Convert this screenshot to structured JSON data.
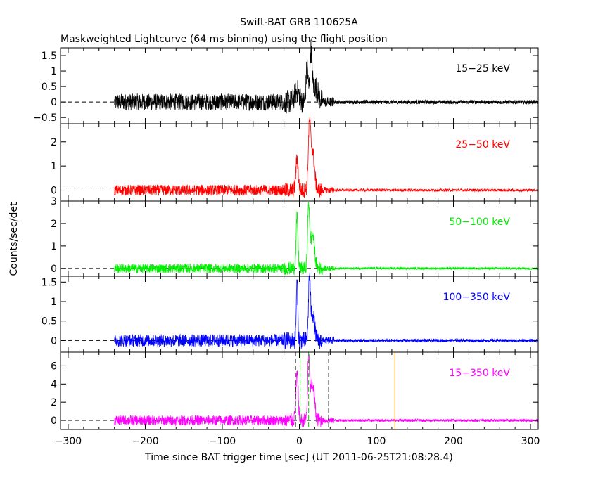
{
  "title": "Swift-BAT GRB 110625A",
  "subtitle": "Maskweighted Lightcurve (64 ms binning) using the flight position",
  "ylabel": "Counts/sec/det",
  "xlabel": "Time since BAT trigger time [sec] (UT 2011-06-25T21:08:28.4)",
  "chart_data": {
    "type": "line",
    "title": "Swift-BAT GRB 110625A",
    "subtitle": "Maskweighted Lightcurve (64 ms binning) using the flight position",
    "xlabel": "Time since BAT trigger time [sec] (UT 2011-06-25T21:08:28.4)",
    "ylabel": "Counts/sec/det",
    "xlim": [
      -310,
      310
    ],
    "xticks": [
      -300,
      -200,
      -100,
      0,
      100,
      200,
      300
    ],
    "data_range": [
      -240,
      310
    ],
    "grid": false,
    "panels": [
      {
        "label": "15−25 keV",
        "color": "#000000",
        "ylim": [
          -0.7,
          1.75
        ],
        "yticks": [
          -0.5,
          0,
          0.5,
          1,
          1.5
        ],
        "yticklabels": [
          "−0.5",
          "0",
          "0.5",
          "1",
          "1.5"
        ],
        "pre_noise": 0.17,
        "post_noise": 0.04,
        "peaks": [
          {
            "t": -3,
            "amp": 0.35,
            "width": 3.0
          },
          {
            "t": 10,
            "amp": 1.15,
            "width": 1.2
          },
          {
            "t": 15,
            "amp": 1.45,
            "width": 1.4
          },
          {
            "t": 20,
            "amp": 0.5,
            "width": 4.0
          }
        ]
      },
      {
        "label": "25−50 keV",
        "color": "#ff0000",
        "ylim": [
          -0.45,
          2.75
        ],
        "yticks": [
          0,
          1,
          2
        ],
        "yticklabels": [
          "0",
          "1",
          "2"
        ],
        "pre_noise": 0.14,
        "post_noise": 0.035,
        "peaks": [
          {
            "t": -3,
            "amp": 1.3,
            "width": 1.5
          },
          {
            "t": 13,
            "amp": 2.4,
            "width": 1.5
          },
          {
            "t": 17,
            "amp": 1.6,
            "width": 2.5
          }
        ]
      },
      {
        "label": "50−100 keV",
        "color": "#00ee00",
        "ylim": [
          -0.35,
          3.0
        ],
        "yticks": [
          0,
          1,
          2,
          3
        ],
        "yticklabels": [
          "0",
          "1",
          "2",
          "3"
        ],
        "pre_noise": 0.13,
        "post_noise": 0.03,
        "peaks": [
          {
            "t": -3,
            "amp": 2.3,
            "width": 1.2
          },
          {
            "t": 12,
            "amp": 2.7,
            "width": 1.3
          },
          {
            "t": 17,
            "amp": 1.5,
            "width": 2.5
          }
        ]
      },
      {
        "label": "100−350 keV",
        "color": "#0000ff",
        "ylim": [
          -0.3,
          1.65
        ],
        "yticks": [
          0,
          0.5,
          1,
          1.5
        ],
        "yticklabels": [
          "0",
          "0.5",
          "1",
          "1.5"
        ],
        "pre_noise": 0.1,
        "post_noise": 0.025,
        "peaks": [
          {
            "t": -3,
            "amp": 1.5,
            "width": 1.0
          },
          {
            "t": 13,
            "amp": 1.5,
            "width": 1.2
          },
          {
            "t": 17,
            "amp": 0.7,
            "width": 2.5
          }
        ]
      },
      {
        "label": "15−350 keV",
        "color": "#ff00ff",
        "ylim": [
          -1.0,
          7.5
        ],
        "yticks": [
          0,
          2,
          4,
          6
        ],
        "yticklabels": [
          "0",
          "2",
          "4",
          "6"
        ],
        "pre_noise": 0.35,
        "post_noise": 0.09,
        "peaks": [
          {
            "t": -3,
            "amp": 5.0,
            "width": 1.5
          },
          {
            "t": 12,
            "amp": 6.5,
            "width": 1.3
          },
          {
            "t": 17,
            "amp": 4.0,
            "width": 2.5
          }
        ],
        "markers": [
          {
            "t": -5,
            "color": "#000000",
            "style": "dashed"
          },
          {
            "t": 38,
            "color": "#000000",
            "style": "dashed"
          },
          {
            "t": 1,
            "color": "#00cc00",
            "style": "dashed"
          },
          {
            "t": 12,
            "color": "#00cc00",
            "style": "dashed"
          },
          {
            "t": 124,
            "color": "#ff8c00",
            "style": "solid"
          }
        ]
      }
    ]
  }
}
